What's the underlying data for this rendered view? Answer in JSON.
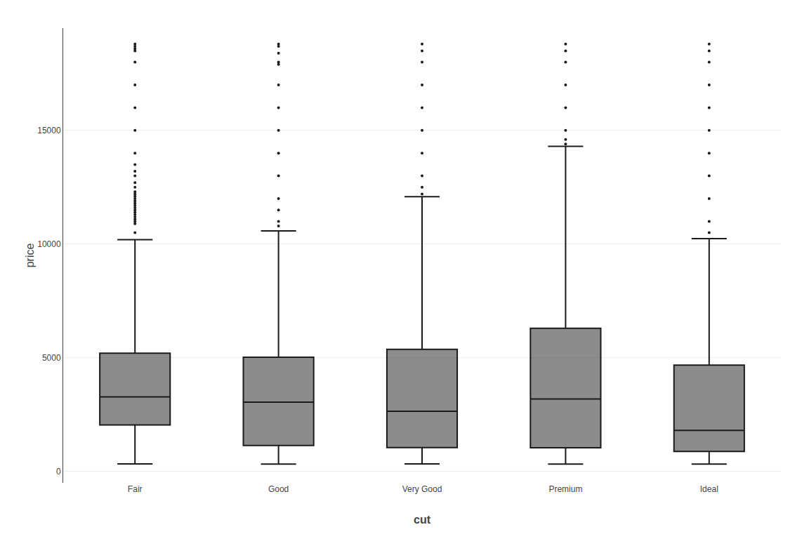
{
  "chart_data": {
    "type": "box",
    "xlabel": "cut",
    "ylabel": "price",
    "categories": [
      "Fair",
      "Good",
      "Very Good",
      "Premium",
      "Ideal"
    ],
    "q1": [
      2050,
      1145,
      1050,
      1046,
      878
    ],
    "median": [
      3282,
      3050,
      2648,
      3185,
      1810
    ],
    "q3": [
      5206,
      5028,
      5373,
      6296,
      4678
    ],
    "whislo": [
      337,
      327,
      336,
      326,
      326
    ],
    "whishi": [
      10197,
      10577,
      12084,
      14296,
      10243
    ],
    "fliers": [
      [
        10500,
        10900,
        11000,
        11100,
        11200,
        11300,
        11400,
        11500,
        11600,
        11700,
        11800,
        11900,
        12000,
        12100,
        12200,
        12300,
        12500,
        12700,
        13000,
        13200,
        13500,
        14000,
        15000,
        16000,
        17000,
        18000,
        18500,
        18600,
        18700,
        18800
      ],
      [
        10800,
        11000,
        11500,
        12000,
        13000,
        14000,
        15000,
        16000,
        17000,
        17900,
        18000,
        18400,
        18700,
        18800
      ],
      [
        12200,
        12500,
        13000,
        14000,
        15000,
        16000,
        17000,
        18000,
        18500,
        18800
      ],
      [
        14400,
        14600,
        15000,
        16000,
        17000,
        18000,
        18500,
        18800
      ],
      [
        10500,
        11000,
        12000,
        13000,
        14000,
        15000,
        16000,
        17000,
        18000,
        18500,
        18800
      ]
    ],
    "color": "#1a1a1a",
    "ylim": [
      -500,
      19500
    ],
    "yticks": [
      0,
      5000,
      10000,
      15000
    ],
    "grid": true
  }
}
